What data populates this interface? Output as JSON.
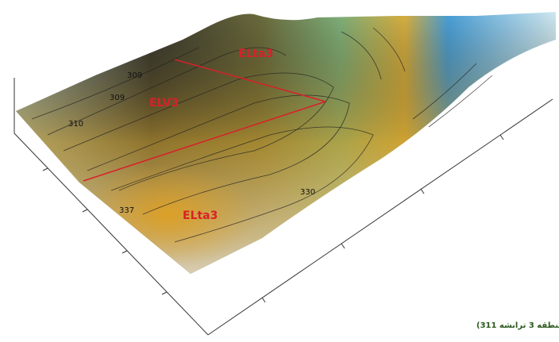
{
  "region_labels": [
    "ELta3",
    "ELV3",
    "ELta3"
  ],
  "contour_labels": [
    "309",
    "309",
    "310",
    "337",
    "330"
  ],
  "caption": "(منطقه 3 ترانشه 311)"
}
